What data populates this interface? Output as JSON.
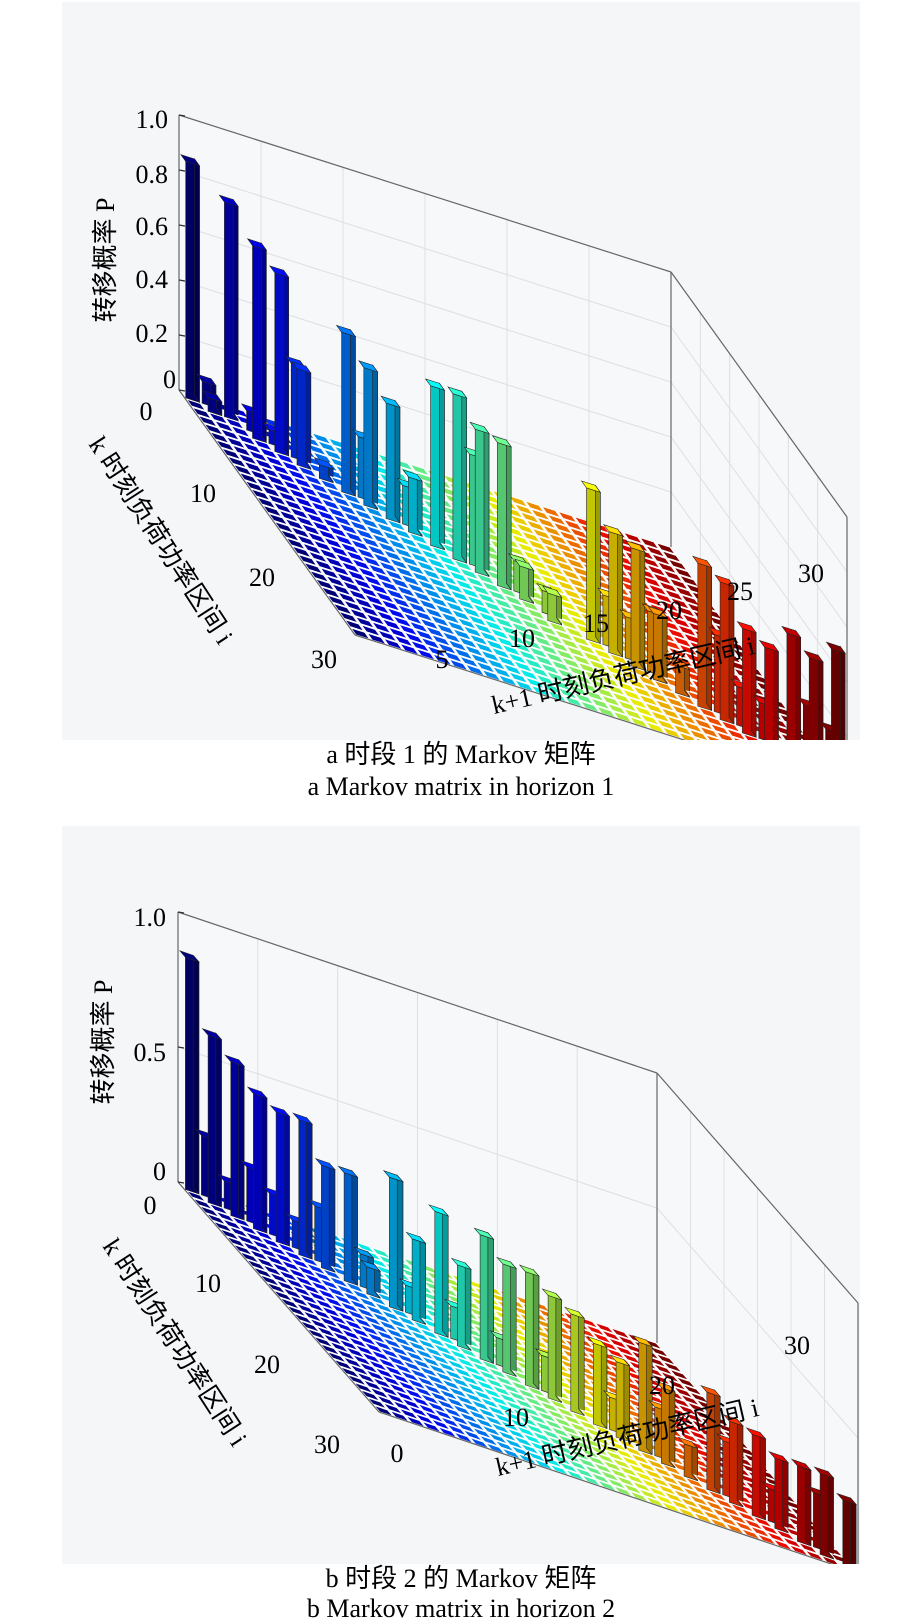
{
  "captions": {
    "a_zh": "a 时段 1 的 Markov 矩阵",
    "a_en": "a  Markov matrix in horizon 1",
    "b_zh": "b 时段 2 的 Markov 矩阵",
    "b_en": "b  Markov matrix in horizon 2"
  },
  "chart_data": [
    {
      "type": "bar3d",
      "xlabel": "k+1 时刻负荷功率区间 i",
      "ylabel": "k 时刻负荷功率区间 i",
      "zlabel": "转移概率 P",
      "x_ticks": [
        "5",
        "10",
        "15",
        "20",
        "25",
        "30"
      ],
      "y_ticks": [
        "0",
        "10",
        "20",
        "30"
      ],
      "z_ticks": [
        "0",
        "0.2",
        "0.4",
        "0.6",
        "0.8",
        "1.0"
      ],
      "zlim": [
        0,
        1
      ],
      "n": 30,
      "colormap": "jet",
      "bars": [
        [
          1,
          1,
          0.86
        ],
        [
          1,
          2,
          0.08
        ],
        [
          2,
          2,
          0.05
        ],
        [
          2,
          3,
          0.78
        ],
        [
          3,
          4,
          0.07
        ],
        [
          4,
          4,
          0.7
        ],
        [
          4,
          5,
          0.05
        ],
        [
          5,
          5,
          0.65
        ],
        [
          5,
          6,
          0.34
        ],
        [
          6,
          6,
          0.35
        ],
        [
          7,
          7,
          0.05
        ],
        [
          8,
          8,
          0.58
        ],
        [
          8,
          9,
          0.22
        ],
        [
          9,
          9,
          0.5
        ],
        [
          10,
          10,
          0.42
        ],
        [
          10,
          11,
          0.14
        ],
        [
          11,
          11,
          0.2
        ],
        [
          12,
          12,
          0.58
        ],
        [
          13,
          13,
          0.6
        ],
        [
          13,
          14,
          0.4
        ],
        [
          14,
          14,
          0.52
        ],
        [
          15,
          15,
          0.52
        ],
        [
          15,
          16,
          0.11
        ],
        [
          16,
          16,
          0.12
        ],
        [
          17,
          17,
          0.08
        ],
        [
          18,
          17,
          0.1
        ],
        [
          19,
          19,
          0.55
        ],
        [
          19,
          20,
          0.18
        ],
        [
          20,
          20,
          0.44
        ],
        [
          20,
          21,
          0.15
        ],
        [
          21,
          21,
          0.43
        ],
        [
          21,
          22,
          0.22
        ],
        [
          22,
          22,
          0.24
        ],
        [
          23,
          23,
          0.1
        ],
        [
          24,
          24,
          0.52
        ],
        [
          24,
          25,
          0.28
        ],
        [
          25,
          25,
          0.5
        ],
        [
          25,
          26,
          0.14
        ],
        [
          26,
          26,
          0.38
        ],
        [
          26,
          27,
          0.13
        ],
        [
          27,
          27,
          0.36
        ],
        [
          28,
          28,
          0.46
        ],
        [
          28,
          29,
          0.22
        ],
        [
          29,
          29,
          0.42
        ],
        [
          29,
          30,
          0.18
        ],
        [
          30,
          30,
          0.5
        ]
      ]
    },
    {
      "type": "bar3d",
      "xlabel": "k+1 时刻负荷功率区间 i",
      "ylabel": "k 时刻负荷功率区间 i",
      "zlabel": "转移概率 P",
      "x_ticks": [
        "0",
        "10",
        "20",
        "30"
      ],
      "y_ticks": [
        "0",
        "10",
        "20",
        "30"
      ],
      "z_ticks": [
        "0",
        "0.5",
        "1.0"
      ],
      "zlim": [
        0,
        1
      ],
      "n": 30,
      "colormap": "jet",
      "bars": [
        [
          1,
          1,
          0.86
        ],
        [
          1,
          2,
          0.22
        ],
        [
          2,
          2,
          0.62
        ],
        [
          2,
          3,
          0.1
        ],
        [
          3,
          3,
          0.57
        ],
        [
          3,
          4,
          0.2
        ],
        [
          4,
          4,
          0.5
        ],
        [
          4,
          5,
          0.15
        ],
        [
          5,
          5,
          0.48
        ],
        [
          5,
          6,
          0.1
        ],
        [
          6,
          6,
          0.5
        ],
        [
          6,
          7,
          0.2
        ],
        [
          7,
          7,
          0.38
        ],
        [
          8,
          8,
          0.4
        ],
        [
          8,
          9,
          0.12
        ],
        [
          9,
          9,
          0.1
        ],
        [
          10,
          10,
          0.48
        ],
        [
          10,
          11,
          0.1
        ],
        [
          11,
          11,
          0.3
        ],
        [
          12,
          12,
          0.45
        ],
        [
          12,
          13,
          0.12
        ],
        [
          13,
          13,
          0.3
        ],
        [
          14,
          14,
          0.46
        ],
        [
          14,
          15,
          0.1
        ],
        [
          15,
          15,
          0.4
        ],
        [
          16,
          16,
          0.42
        ],
        [
          16,
          17,
          0.13
        ],
        [
          17,
          17,
          0.38
        ],
        [
          18,
          18,
          0.36
        ],
        [
          19,
          19,
          0.3
        ],
        [
          19,
          20,
          0.12
        ],
        [
          20,
          20,
          0.28
        ],
        [
          21,
          21,
          0.4
        ],
        [
          21,
          22,
          0.18
        ],
        [
          22,
          22,
          0.28
        ],
        [
          23,
          23,
          0.12
        ],
        [
          24,
          24,
          0.36
        ],
        [
          24,
          25,
          0.2
        ],
        [
          25,
          25,
          0.3
        ],
        [
          26,
          26,
          0.3
        ],
        [
          26,
          27,
          0.12
        ],
        [
          27,
          27,
          0.26
        ],
        [
          28,
          28,
          0.28
        ],
        [
          28,
          29,
          0.2
        ],
        [
          29,
          29,
          0.3
        ],
        [
          30,
          30,
          0.25
        ]
      ]
    }
  ]
}
